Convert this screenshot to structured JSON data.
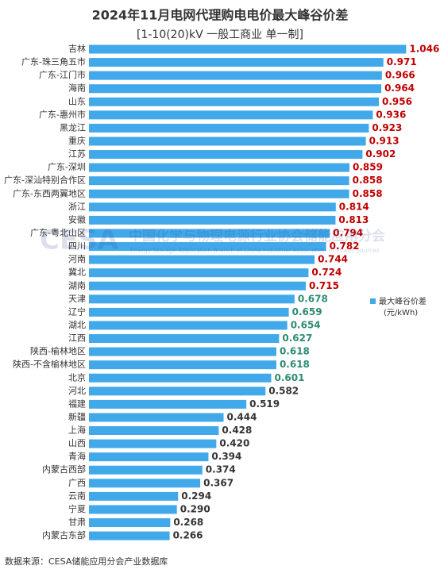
{
  "chart_data": {
    "type": "barh",
    "title": "2024年11月电网代理购电电价最大峰谷价差",
    "subtitle": "[1-10(20)kV 一般工商业 单一制]",
    "source": "数据来源：CESA储能应用分会产业数据库",
    "watermark": [
      "CESA",
      "中国化学与物理电源行业协会储能应用分会",
      "Energy Storage Application Branch of China Industrial Association of Power Sources"
    ],
    "categories": [
      "吉林",
      "广东-珠三角五市",
      "广东-江门市",
      "海南",
      "山东",
      "广东-惠州市",
      "黑龙江",
      "重庆",
      "江苏",
      "广东-深圳",
      "广东-深汕特别合作区",
      "广东-东西两翼地区",
      "浙江",
      "安徽",
      "广东-粤北山区",
      "四川",
      "河南",
      "冀北",
      "湖南",
      "天津",
      "辽宁",
      "湖北",
      "江西",
      "陕西-榆林地区",
      "陕西-不含榆林地区",
      "北京",
      "河北",
      "福建",
      "新疆",
      "上海",
      "山西",
      "青海",
      "内蒙古西部",
      "广西",
      "云南",
      "宁夏",
      "甘肃",
      "内蒙古东部"
    ],
    "series": [
      {
        "name": "最大峰谷价差",
        "unit": "(元/kWh)",
        "color": "#41a9ea",
        "values": [
          1.046,
          0.971,
          0.966,
          0.964,
          0.956,
          0.936,
          0.923,
          0.913,
          0.902,
          0.859,
          0.858,
          0.858,
          0.814,
          0.813,
          0.794,
          0.782,
          0.744,
          0.724,
          0.715,
          0.678,
          0.659,
          0.654,
          0.627,
          0.618,
          0.618,
          0.601,
          0.582,
          0.519,
          0.444,
          0.428,
          0.42,
          0.394,
          0.374,
          0.367,
          0.294,
          0.29,
          0.268,
          0.266
        ],
        "value_labels": [
          "1.046",
          "0.971",
          "0.966",
          "0.964",
          "0.956",
          "0.936",
          "0.923",
          "0.913",
          "0.902",
          "0.859",
          "0.858",
          "0.858",
          "0.814",
          "0.813",
          "0.794",
          "0.782",
          "0.744",
          "0.724",
          "0.715",
          "0.678",
          "0.659",
          "0.654",
          "0.627",
          "0.618",
          "0.618",
          "0.601",
          "0.582",
          "0.519",
          "0.444",
          "0.428",
          "0.420",
          "0.394",
          "0.374",
          "0.367",
          "0.294",
          "0.290",
          "0.268",
          "0.266"
        ],
        "value_label_colors": [
          "#c00000",
          "#c00000",
          "#c00000",
          "#c00000",
          "#c00000",
          "#c00000",
          "#c00000",
          "#c00000",
          "#c00000",
          "#c00000",
          "#c00000",
          "#c00000",
          "#c00000",
          "#c00000",
          "#c00000",
          "#c00000",
          "#c00000",
          "#c00000",
          "#c00000",
          "#2e8b73",
          "#2e8b73",
          "#2e8b73",
          "#2e8b73",
          "#2e8b73",
          "#2e8b73",
          "#2e8b73",
          "#333333",
          "#333333",
          "#333333",
          "#333333",
          "#333333",
          "#333333",
          "#333333",
          "#333333",
          "#333333",
          "#333333",
          "#333333",
          "#333333"
        ]
      }
    ],
    "xlim": [
      0,
      1.1
    ]
  }
}
